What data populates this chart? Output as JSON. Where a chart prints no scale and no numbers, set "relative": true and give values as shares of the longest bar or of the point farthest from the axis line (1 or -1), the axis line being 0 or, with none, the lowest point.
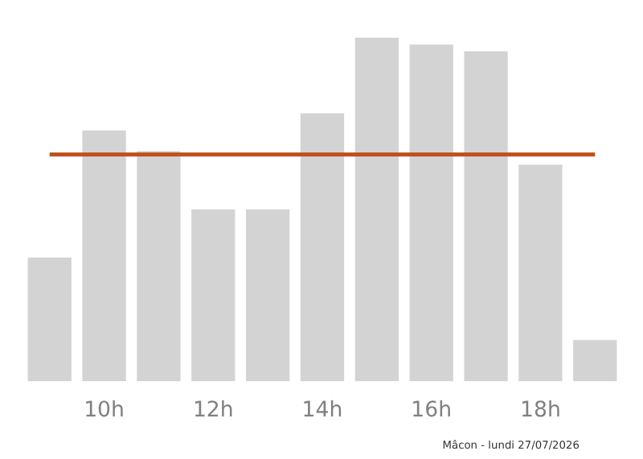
{
  "chart_data": {
    "type": "bar",
    "relative": true,
    "categories": [
      null,
      "10h",
      null,
      "12h",
      null,
      "14h",
      null,
      "16h",
      null,
      "18h",
      null
    ],
    "values": [
      0.36,
      0.73,
      0.67,
      0.5,
      0.5,
      0.78,
      1,
      0.98,
      0.96,
      0.63,
      0.12
    ],
    "color": "#d3d3d3",
    "ref_lines": [
      {
        "axis": "y",
        "value": 0.66,
        "color": "#c0521c"
      }
    ],
    "grid": false,
    "annotations": [
      "Mâcon - lundi 27/07/2026"
    ]
  }
}
